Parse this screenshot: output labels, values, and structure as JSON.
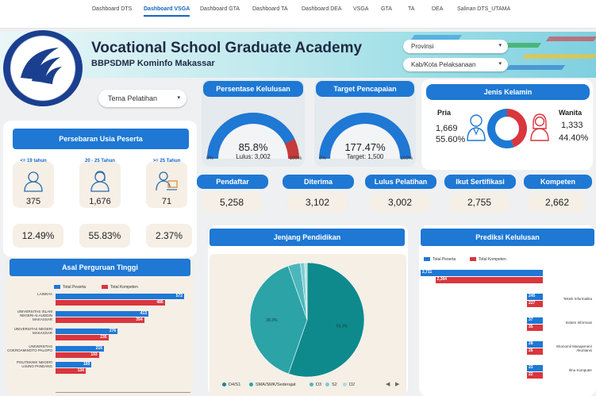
{
  "tabs": [
    "Dashboard DTS",
    "Dashboard VSGA",
    "Dashboard GTA",
    "Dashboard TA",
    "Dashboard DEA",
    "VSGA",
    "GTA",
    "TA",
    "DEA",
    "Salinan DTS_UTAMA"
  ],
  "active_tab": "Dashboard VSGA",
  "header": {
    "title": "Vocational School Graduate Academy",
    "subtitle": "BBPSDMP Kominfo Makassar",
    "filter_provinsi": "Provinsi",
    "filter_kabkota": "Kab/Kota Pelaksanaan"
  },
  "tema_pelatihan": "Tema Pelatihan",
  "kelulusan": {
    "title": "Persentase Kelulusan",
    "value": "85.8%",
    "sub": "Lulus: 3,002",
    "min": "0%",
    "max": "100%",
    "fraction": 0.858
  },
  "target": {
    "title": "Target Pencapaian",
    "value": "177.47%",
    "sub": "Target: 1,500",
    "min": "0%",
    "max": "100%",
    "fraction": 1.0
  },
  "gender": {
    "title": "Jenis Kelamin",
    "pria_label": "Pria",
    "pria_count": "1,669",
    "pria_pct": "55.60%",
    "wanita_label": "Wanita",
    "wanita_count": "1,333",
    "wanita_pct": "44.40%",
    "colors": {
      "pria": "#1e78d4",
      "wanita": "#d9363e"
    }
  },
  "usia": {
    "title": "Persebaran Usia  Peserta",
    "groups": [
      {
        "label": "<= 19 tahun",
        "count": "375",
        "pct": "12.49%"
      },
      {
        "label": "20 - 25 Tahun",
        "count": "1,676",
        "pct": "55.83%"
      },
      {
        "label": ">= 25 Tahun",
        "count": "71",
        "pct": "2.37%"
      }
    ]
  },
  "stats": [
    {
      "label": "Pendaftar",
      "value": "5,258"
    },
    {
      "label": "Diterima",
      "value": "3,102"
    },
    {
      "label": "Lulus  Pelatihan",
      "value": "3,002"
    },
    {
      "label": "Ikut Sertifikasi",
      "value": "2,755"
    },
    {
      "label": "Kompeten",
      "value": "2,662"
    }
  ],
  "asal_pt": {
    "title": "Asal Perguruan Tinggi",
    "legend": [
      "Total Peserta",
      "Total Kompeten"
    ],
    "rows": [
      {
        "name": "LAINNYA",
        "peserta": 572,
        "kompeten": 486,
        "peserta_label": "572",
        "kompeten_label": "486"
      },
      {
        "name": "UNIVERSITAS ISLAM NEGERI ALAUDDIN MAKASSAR",
        "peserta": 413,
        "kompeten": 394,
        "peserta_label": "413",
        "kompeten_label": "394"
      },
      {
        "name": "UNIVERSITAS NEGERI MAKASSAR",
        "peserta": 276,
        "kompeten": 235,
        "peserta_label": "276",
        "kompeten_label": "235"
      },
      {
        "name": "UNIVERSITAS COKROAMINOTO PALOPO",
        "peserta": 215,
        "kompeten": 193,
        "peserta_label": "215",
        "kompeten_label": "193"
      },
      {
        "name": "POLITEKNIK NEGERI UJUNG PANDANG",
        "peserta": 160,
        "kompeten": 134,
        "peserta_label": "160",
        "kompeten_label": "134"
      }
    ],
    "max": 600
  },
  "jenjang": {
    "title": "Jenjang Pendidikan",
    "slices": [
      {
        "name": "D4/S1",
        "value": 55.3,
        "label": "55.3%",
        "color": "#0f8a8c"
      },
      {
        "name": "SMA/SMK/Sederajat",
        "value": 39.3,
        "label": "39.3%",
        "color": "#2ba3a7"
      },
      {
        "name": "D3",
        "value": 3.5,
        "label": "",
        "color": "#4cb7bb"
      },
      {
        "name": "S2",
        "value": 1.2,
        "label": "",
        "color": "#7ccdd0"
      },
      {
        "name": "D2",
        "value": 0.7,
        "label": "",
        "color": "#a9e0e2"
      }
    ]
  },
  "prediksi": {
    "title": "Prediksi Kelulusan",
    "legend": [
      "Total Peserta",
      "Total Kompeten"
    ],
    "rows": [
      {
        "name": "",
        "peserta": 2711,
        "kompeten": 2384,
        "peserta_label": "2,711",
        "kompeten_label": "2,384"
      },
      {
        "name": "Teknik Informatika",
        "peserta": 245,
        "kompeten": 227,
        "peserta_label": "245",
        "kompeten_label": "227"
      },
      {
        "name": "Sistem Informasi",
        "peserta": 37,
        "kompeten": 35,
        "peserta_label": "37",
        "kompeten_label": "35"
      },
      {
        "name": "Ekonomi/ Manajemen/ Akuntansi",
        "peserta": 28,
        "kompeten": 26,
        "peserta_label": "28",
        "kompeten_label": "26"
      },
      {
        "name": "Ilmu Komputer",
        "peserta": 23,
        "kompeten": 22,
        "peserta_label": "23",
        "kompeten_label": "22"
      }
    ]
  },
  "colors": {
    "primary": "#1e78d4",
    "red": "#d9363e",
    "tan": "#f5efe6"
  }
}
